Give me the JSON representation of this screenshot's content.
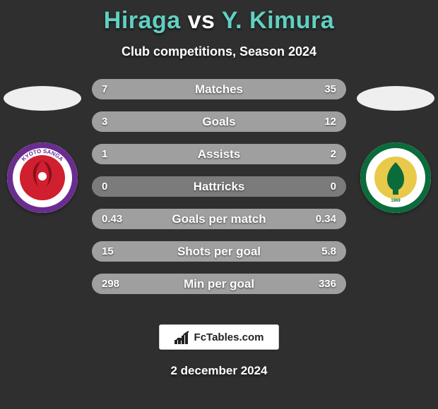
{
  "page": {
    "background_color": "#2f2f2f",
    "text_color": "#ffffff"
  },
  "title": {
    "parts": [
      {
        "text": "Hiraga",
        "color": "#60d0c1"
      },
      {
        "text": " vs ",
        "color": "#ffffff"
      },
      {
        "text": "Y. Kimura",
        "color": "#60d0c1"
      }
    ],
    "fontsize": 34
  },
  "subtitle": {
    "text": "Club competitions, Season 2024",
    "fontsize": 18
  },
  "players": {
    "left": {
      "name": "Hiraga",
      "club_badge": {
        "bg": "#ffffff",
        "ring": "#6a2c8f",
        "inner": "#d01f2e",
        "text": "KYOTO SANGA"
      }
    },
    "right": {
      "name": "Y. Kimura",
      "club_badge": {
        "bg": "#ffffff",
        "ring": "#0a6b3b",
        "inner": "#0a6b3b",
        "accent": "#e9c94a",
        "text": "TOKYO VERDY"
      }
    }
  },
  "stats": {
    "bar_bg": "#7b7b7b",
    "fill_right_color": "#9f9f9f",
    "fill_left_color": "#9f9f9f",
    "label_color": "#ffffff",
    "value_color": "#ffffff",
    "rows": [
      {
        "label": "Matches",
        "left": "7",
        "right": "35",
        "left_pct": 16.7,
        "right_pct": 83.3
      },
      {
        "label": "Goals",
        "left": "3",
        "right": "12",
        "left_pct": 20.0,
        "right_pct": 80.0
      },
      {
        "label": "Assists",
        "left": "1",
        "right": "2",
        "left_pct": 33.3,
        "right_pct": 66.7
      },
      {
        "label": "Hattricks",
        "left": "0",
        "right": "0",
        "left_pct": 0,
        "right_pct": 0
      },
      {
        "label": "Goals per match",
        "left": "0.43",
        "right": "0.34",
        "left_pct": 55.8,
        "right_pct": 44.2
      },
      {
        "label": "Shots per goal",
        "left": "15",
        "right": "5.8",
        "left_pct": 72.1,
        "right_pct": 27.9
      },
      {
        "label": "Min per goal",
        "left": "298",
        "right": "336",
        "left_pct": 47.0,
        "right_pct": 53.0
      }
    ]
  },
  "footer": {
    "brand": "FcTables.com",
    "date": "2 december 2024"
  }
}
